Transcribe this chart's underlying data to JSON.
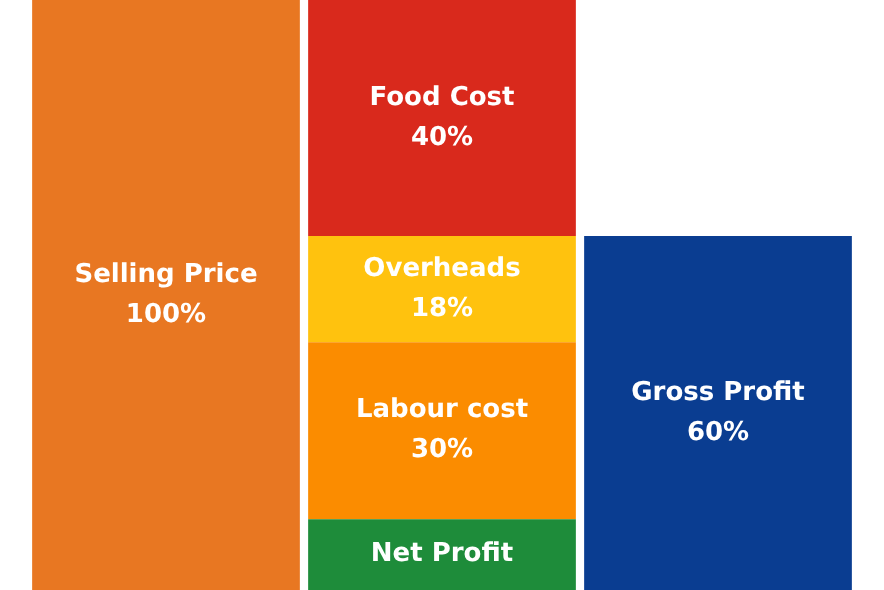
{
  "chart_data": {
    "type": "bar",
    "stacked": true,
    "categories": [
      null,
      null,
      null
    ],
    "legend": false,
    "tick_labels": false,
    "series": [
      {
        "name": "Net Profit",
        "color": "#1e8c3a",
        "values": [
          null,
          12,
          null
        ],
        "value_labels": [
          null,
          null,
          null
        ]
      },
      {
        "name": "Labour cost",
        "color": "#fb8c00",
        "values": [
          null,
          30,
          null
        ],
        "value_labels": [
          null,
          "30%",
          null
        ]
      },
      {
        "name": "Overheads",
        "color": "#ffc20e",
        "values": [
          null,
          18,
          null
        ],
        "value_labels": [
          null,
          "18%",
          null
        ]
      },
      {
        "name": "Food Cost",
        "color": "#d9291c",
        "values": [
          null,
          40,
          null
        ],
        "value_labels": [
          null,
          "40%",
          null
        ]
      },
      {
        "name": "Selling Price",
        "color": "#e87722",
        "values": [
          100,
          null,
          null
        ],
        "value_labels": [
          "100%",
          null,
          null
        ]
      },
      {
        "name": "Gross Profit",
        "color": "#0a3d91",
        "values": [
          null,
          null,
          60
        ],
        "value_labels": [
          null,
          null,
          "60%"
        ]
      }
    ]
  }
}
